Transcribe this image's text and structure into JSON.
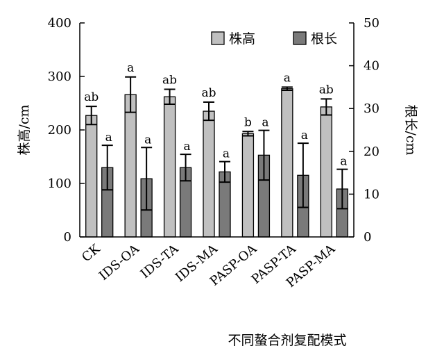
{
  "chart_data": {
    "type": "bar",
    "xlabel": "不同螯合剂复配模式",
    "ylabel_left": "株高/cm",
    "ylabel_right": "根长/cm",
    "ylim_left": [
      0,
      400
    ],
    "ylim_right": [
      0,
      50
    ],
    "yticks_left": [
      0,
      100,
      200,
      300,
      400
    ],
    "yticks_right": [
      0,
      10,
      20,
      30,
      40,
      50
    ],
    "categories": [
      "CK",
      "IDS-OA",
      "IDS-TA",
      "IDS-MA",
      "PASP-OA",
      "PASP-TA",
      "PASP-MA"
    ],
    "legend_position": "top-right",
    "grid": false,
    "series": [
      {
        "name": "株高",
        "axis": "left",
        "color": "#c0c0c0",
        "values": [
          227,
          266,
          262,
          235,
          193,
          277,
          243
        ],
        "errors": [
          17,
          33,
          14,
          17,
          4,
          3,
          15
        ],
        "labels": [
          "ab",
          "a",
          "ab",
          "ab",
          "b",
          "a",
          "ab"
        ]
      },
      {
        "name": "根长",
        "axis": "right",
        "color": "#7a7a7a",
        "values": [
          16.2,
          13.6,
          16.2,
          15.2,
          19.1,
          14.4,
          11.2
        ],
        "errors": [
          5.2,
          7.3,
          3.1,
          2.4,
          5.8,
          7.5,
          4.6
        ],
        "labels": [
          "a",
          "a",
          "a",
          "a",
          "a",
          "a",
          "a"
        ]
      }
    ]
  }
}
